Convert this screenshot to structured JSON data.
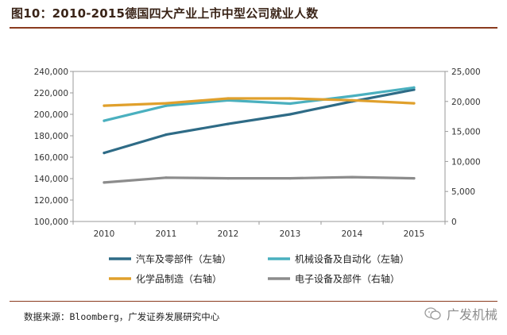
{
  "title": "图10：2010-2015德国四大产业上市中型公司就业人数",
  "source": "数据来源：Bloomberg，广发证券发展研究中心",
  "watermark": "广发机械",
  "chart_data": {
    "type": "line",
    "categories": [
      "2010",
      "2011",
      "2012",
      "2013",
      "2014",
      "2015"
    ],
    "left_axis": {
      "range": [
        100000,
        240000
      ],
      "ticks": [
        "100,000",
        "120,000",
        "140,000",
        "160,000",
        "180,000",
        "200,000",
        "220,000",
        "240,000"
      ]
    },
    "right_axis": {
      "range": [
        0,
        25000
      ],
      "ticks": [
        "0",
        "5,000",
        "10,000",
        "15,000",
        "20,000",
        "25,000"
      ]
    },
    "series": [
      {
        "name": "汽车及零部件（左轴）",
        "axis": "left",
        "color": "#2e6b86",
        "values": [
          164000,
          181000,
          191000,
          200000,
          212000,
          223000
        ]
      },
      {
        "name": "机械设备及自动化（左轴）",
        "axis": "left",
        "color": "#4ab0bf",
        "values": [
          194000,
          208000,
          213000,
          210000,
          217000,
          225000
        ]
      },
      {
        "name": "化学品制造（右轴）",
        "axis": "right",
        "color": "#e0a02c",
        "values": [
          19300,
          19700,
          20500,
          20500,
          20200,
          19700
        ]
      },
      {
        "name": "电子设备及部件（右轴）",
        "axis": "right",
        "color": "#8c8c8c",
        "values": [
          6500,
          7300,
          7200,
          7200,
          7400,
          7200
        ]
      }
    ]
  }
}
